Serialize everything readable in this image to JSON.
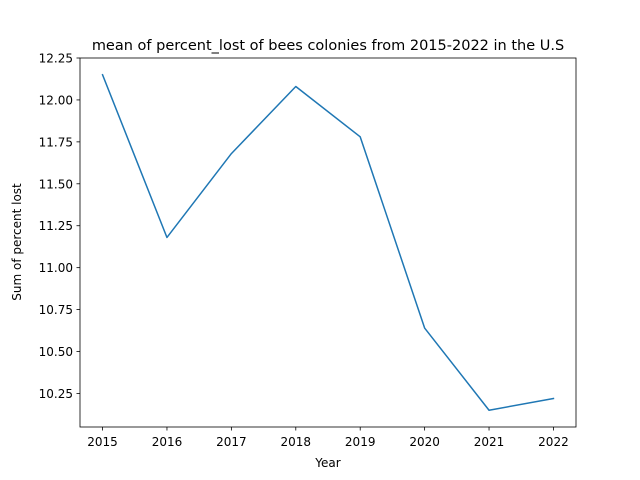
{
  "chart_data": {
    "type": "line",
    "title": "mean of percent_lost of bees colonies from 2015-2022 in the U.S",
    "xlabel": "Year",
    "ylabel": "Sum of percent lost",
    "x": [
      2015,
      2016,
      2017,
      2018,
      2019,
      2020,
      2021,
      2022
    ],
    "x_tick_labels": [
      "2015",
      "2016",
      "2017",
      "2018",
      "2019",
      "2020",
      "2021",
      "2022"
    ],
    "series": [
      {
        "values": [
          12.15,
          11.18,
          11.68,
          12.08,
          11.78,
          10.64,
          10.15,
          10.22
        ]
      }
    ],
    "yticks": [
      10.25,
      10.5,
      10.75,
      11.0,
      11.25,
      11.5,
      11.75,
      12.0,
      12.25
    ],
    "y_tick_labels": [
      "10.25",
      "10.50",
      "10.75",
      "11.00",
      "11.25",
      "11.50",
      "11.75",
      "12.00",
      "12.25"
    ],
    "xlim": [
      2014.65,
      2022.35
    ],
    "ylim": [
      10.05,
      12.25
    ],
    "grid": false,
    "line_color": "#1f77b4"
  }
}
